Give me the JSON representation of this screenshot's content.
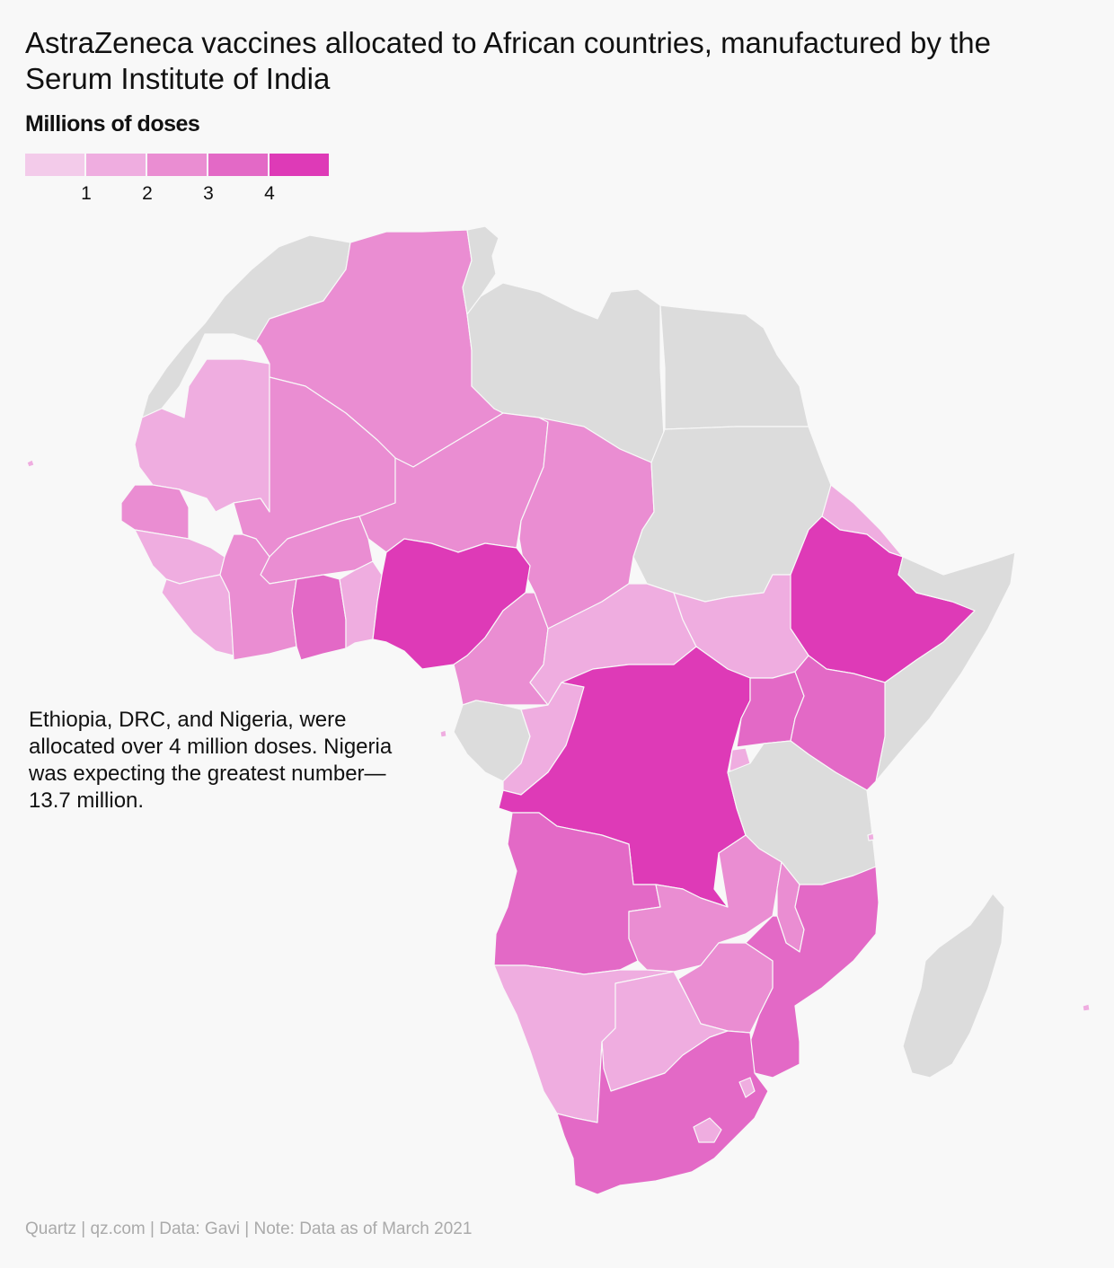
{
  "title": "AstraZeneca vaccines allocated to African countries, manufactured by the Serum Institute of India",
  "legend": {
    "title": "Millions of doses",
    "ticks": [
      "1",
      "2",
      "3",
      "4"
    ],
    "colors": [
      "#f3cbea",
      "#efade0",
      "#ea8dd2",
      "#e369c6",
      "#de3ab7"
    ]
  },
  "colors": {
    "background": "#f8f8f8",
    "no_data": "#dcdcdc"
  },
  "annotation": "Ethiopia, DRC, and Nigeria, were allocated over 4 million doses. Nigeria was expecting the greatest number—13.7 million.",
  "source": "Quartz | qz.com | Data: Gavi | Note: Data as of March 2021"
}
